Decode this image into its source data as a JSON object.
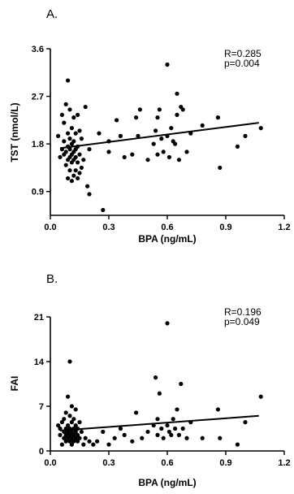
{
  "chart_data": [
    {
      "type": "scatter",
      "panel_label": "A.",
      "xlabel": "BPA (ng/mL)",
      "ylabel": "TST (nmol/L)",
      "xlim": [
        0,
        1.2
      ],
      "ylim": [
        0.45,
        3.6
      ],
      "xticks": [
        0.0,
        0.3,
        0.6,
        0.9,
        1.2
      ],
      "xtick_labels": [
        "0.0",
        "0.3",
        "0.6",
        "0.9",
        "1.2"
      ],
      "yticks": [
        0.9,
        1.8,
        2.7,
        3.6
      ],
      "ytick_labels": [
        "0.9",
        "1.8",
        "2.7",
        "3.6"
      ],
      "stats": [
        "R=0.285",
        "p=0.004"
      ],
      "fit_line": {
        "x": [
          0.05,
          1.07
        ],
        "y": [
          1.72,
          2.2
        ]
      },
      "points": [
        [
          0.04,
          1.95
        ],
        [
          0.05,
          1.55
        ],
        [
          0.06,
          1.7
        ],
        [
          0.06,
          2.35
        ],
        [
          0.07,
          1.6
        ],
        [
          0.07,
          1.85
        ],
        [
          0.07,
          2.2
        ],
        [
          0.08,
          1.4
        ],
        [
          0.08,
          1.65
        ],
        [
          0.08,
          2.55
        ],
        [
          0.09,
          1.15
        ],
        [
          0.09,
          1.5
        ],
        [
          0.09,
          1.75
        ],
        [
          0.09,
          2.0
        ],
        [
          0.09,
          3.0
        ],
        [
          0.1,
          1.3
        ],
        [
          0.1,
          1.55
        ],
        [
          0.1,
          1.7
        ],
        [
          0.1,
          1.9
        ],
        [
          0.1,
          2.45
        ],
        [
          0.11,
          1.1
        ],
        [
          0.11,
          1.45
        ],
        [
          0.11,
          1.6
        ],
        [
          0.11,
          1.8
        ],
        [
          0.11,
          2.1
        ],
        [
          0.12,
          1.2
        ],
        [
          0.12,
          1.5
        ],
        [
          0.12,
          1.65
        ],
        [
          0.12,
          1.85
        ],
        [
          0.12,
          2.3
        ],
        [
          0.13,
          1.3
        ],
        [
          0.13,
          1.55
        ],
        [
          0.13,
          1.7
        ],
        [
          0.13,
          2.0
        ],
        [
          0.14,
          1.15
        ],
        [
          0.14,
          1.45
        ],
        [
          0.14,
          1.75
        ],
        [
          0.14,
          2.35
        ],
        [
          0.15,
          1.25
        ],
        [
          0.15,
          1.6
        ],
        [
          0.15,
          2.05
        ],
        [
          0.16,
          1.35
        ],
        [
          0.16,
          1.9
        ],
        [
          0.17,
          1.5
        ],
        [
          0.18,
          2.5
        ],
        [
          0.19,
          1.0
        ],
        [
          0.2,
          1.7
        ],
        [
          0.2,
          0.85
        ],
        [
          0.25,
          2.0
        ],
        [
          0.27,
          0.55
        ],
        [
          0.3,
          1.65
        ],
        [
          0.3,
          1.85
        ],
        [
          0.34,
          2.25
        ],
        [
          0.36,
          1.95
        ],
        [
          0.38,
          1.55
        ],
        [
          0.42,
          1.6
        ],
        [
          0.44,
          2.3
        ],
        [
          0.45,
          1.95
        ],
        [
          0.46,
          2.45
        ],
        [
          0.5,
          1.5
        ],
        [
          0.53,
          1.8
        ],
        [
          0.54,
          2.05
        ],
        [
          0.55,
          1.6
        ],
        [
          0.55,
          2.3
        ],
        [
          0.56,
          2.45
        ],
        [
          0.57,
          1.9
        ],
        [
          0.58,
          1.65
        ],
        [
          0.6,
          1.95
        ],
        [
          0.6,
          3.3
        ],
        [
          0.61,
          1.55
        ],
        [
          0.62,
          2.1
        ],
        [
          0.63,
          1.85
        ],
        [
          0.64,
          1.8
        ],
        [
          0.65,
          2.75
        ],
        [
          0.65,
          2.35
        ],
        [
          0.66,
          1.5
        ],
        [
          0.67,
          2.5
        ],
        [
          0.68,
          2.45
        ],
        [
          0.7,
          1.65
        ],
        [
          0.72,
          2.0
        ],
        [
          0.78,
          2.15
        ],
        [
          0.86,
          2.3
        ],
        [
          0.87,
          1.35
        ],
        [
          0.96,
          1.75
        ],
        [
          1.0,
          1.95
        ],
        [
          1.08,
          2.1
        ]
      ]
    },
    {
      "type": "scatter",
      "panel_label": "B.",
      "xlabel": "BPA (ng/mL)",
      "ylabel": "FAI",
      "xlim": [
        0,
        1.2
      ],
      "ylim": [
        0,
        21
      ],
      "xticks": [
        0.0,
        0.3,
        0.6,
        0.9,
        1.2
      ],
      "xtick_labels": [
        "0.0",
        "0.3",
        "0.6",
        "0.9",
        "1.2"
      ],
      "yticks": [
        0,
        7,
        14,
        21
      ],
      "ytick_labels": [
        "0",
        "7",
        "14",
        "21"
      ],
      "stats": [
        "R=0.196",
        "p=0.049"
      ],
      "fit_line": {
        "x": [
          0.05,
          1.07
        ],
        "y": [
          3.2,
          5.5
        ]
      },
      "points": [
        [
          0.04,
          4.0
        ],
        [
          0.05,
          2.5
        ],
        [
          0.05,
          3.5
        ],
        [
          0.06,
          1.0
        ],
        [
          0.06,
          4.5
        ],
        [
          0.07,
          2.0
        ],
        [
          0.07,
          3.0
        ],
        [
          0.07,
          5.0
        ],
        [
          0.08,
          1.5
        ],
        [
          0.08,
          2.5
        ],
        [
          0.08,
          3.5
        ],
        [
          0.08,
          6.0
        ],
        [
          0.09,
          2.0
        ],
        [
          0.09,
          3.0
        ],
        [
          0.09,
          4.0
        ],
        [
          0.09,
          8.5
        ],
        [
          0.1,
          1.5
        ],
        [
          0.1,
          2.5
        ],
        [
          0.1,
          3.5
        ],
        [
          0.1,
          5.5
        ],
        [
          0.1,
          14.0
        ],
        [
          0.11,
          1.0
        ],
        [
          0.11,
          2.0
        ],
        [
          0.11,
          3.0
        ],
        [
          0.11,
          4.5
        ],
        [
          0.11,
          7.0
        ],
        [
          0.12,
          1.5
        ],
        [
          0.12,
          2.5
        ],
        [
          0.12,
          3.5
        ],
        [
          0.12,
          5.0
        ],
        [
          0.13,
          2.0
        ],
        [
          0.13,
          3.0
        ],
        [
          0.13,
          4.0
        ],
        [
          0.13,
          6.5
        ],
        [
          0.14,
          1.5
        ],
        [
          0.14,
          2.5
        ],
        [
          0.14,
          3.5
        ],
        [
          0.15,
          2.0
        ],
        [
          0.15,
          4.5
        ],
        [
          0.16,
          3.0
        ],
        [
          0.17,
          1.0
        ],
        [
          0.18,
          2.0
        ],
        [
          0.2,
          1.5
        ],
        [
          0.22,
          1.0
        ],
        [
          0.24,
          1.5
        ],
        [
          0.27,
          3.0
        ],
        [
          0.3,
          1.0
        ],
        [
          0.33,
          2.0
        ],
        [
          0.36,
          3.5
        ],
        [
          0.38,
          2.5
        ],
        [
          0.42,
          1.5
        ],
        [
          0.44,
          6.0
        ],
        [
          0.47,
          2.0
        ],
        [
          0.5,
          3.0
        ],
        [
          0.53,
          4.0
        ],
        [
          0.54,
          11.5
        ],
        [
          0.55,
          2.5
        ],
        [
          0.55,
          5.0
        ],
        [
          0.56,
          9.0
        ],
        [
          0.57,
          3.5
        ],
        [
          0.58,
          2.0
        ],
        [
          0.6,
          4.0
        ],
        [
          0.6,
          20.0
        ],
        [
          0.61,
          3.0
        ],
        [
          0.62,
          2.5
        ],
        [
          0.63,
          5.0
        ],
        [
          0.64,
          3.5
        ],
        [
          0.65,
          6.5
        ],
        [
          0.66,
          2.5
        ],
        [
          0.67,
          10.5
        ],
        [
          0.68,
          3.5
        ],
        [
          0.7,
          2.0
        ],
        [
          0.72,
          4.5
        ],
        [
          0.78,
          2.0
        ],
        [
          0.86,
          6.5
        ],
        [
          0.87,
          2.0
        ],
        [
          0.96,
          1.0
        ],
        [
          1.0,
          4.5
        ],
        [
          1.08,
          8.5
        ]
      ]
    }
  ]
}
